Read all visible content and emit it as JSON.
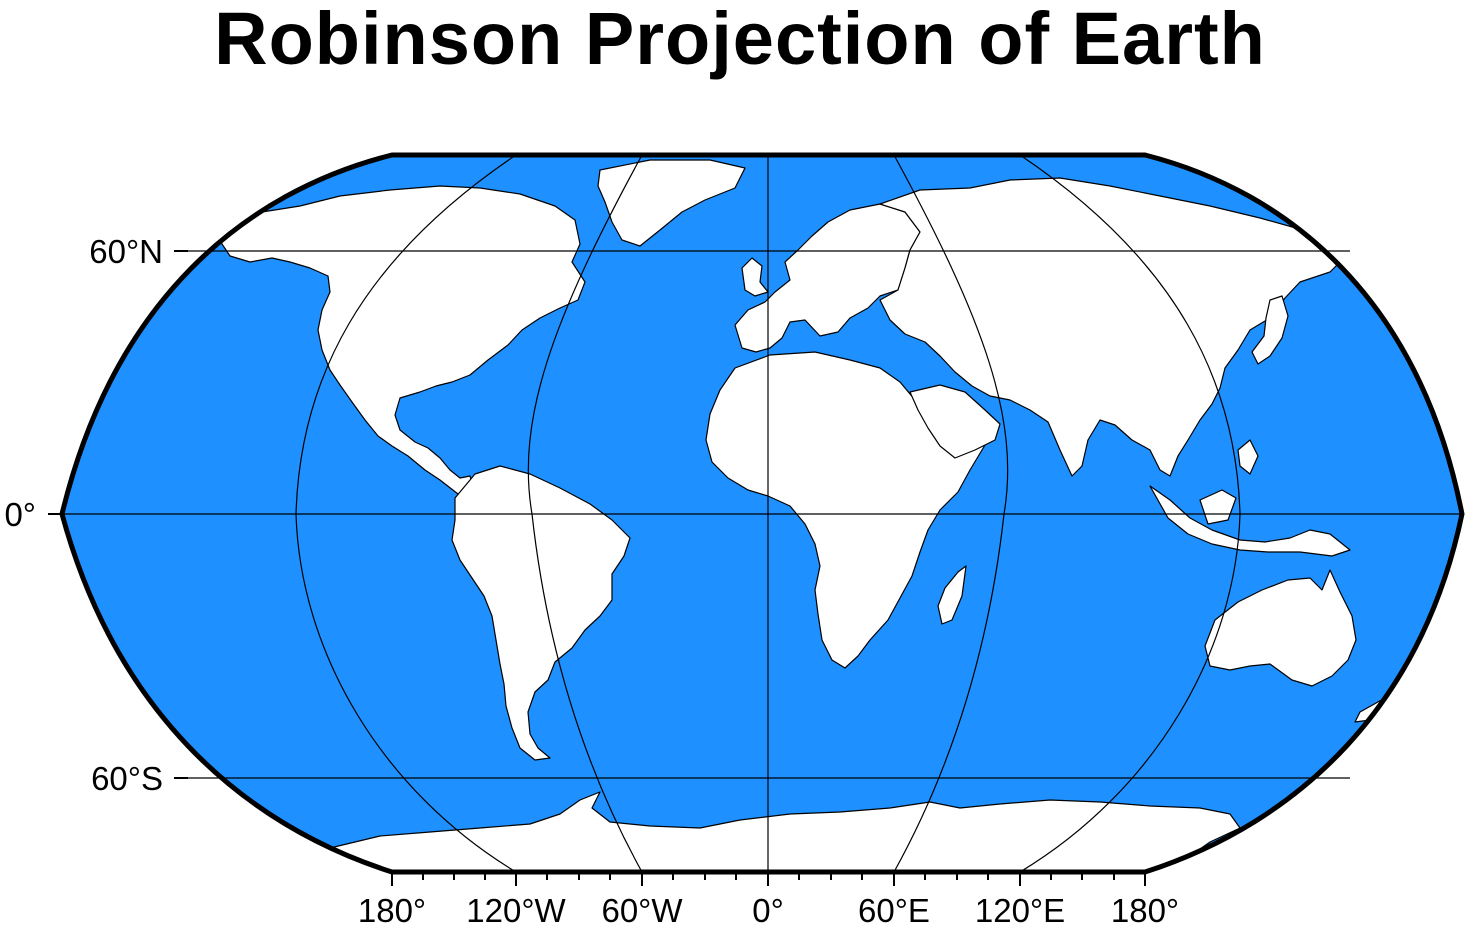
{
  "title": "Robinson Projection of Earth",
  "colors": {
    "ocean": "#1e90ff",
    "land": "#ffffff",
    "frame": "#000000",
    "gridline": "#000000"
  },
  "longitude_labels": [
    "180°",
    "120°W",
    "60°W",
    "0°",
    "60°E",
    "120°E",
    "180°"
  ],
  "latitude_labels": [
    "60°N",
    "0°",
    "60°S"
  ],
  "regions": [
    "north-america",
    "greenland",
    "south-america",
    "europe",
    "africa",
    "asia",
    "arabia",
    "india",
    "indonesia",
    "australia",
    "new-zealand",
    "madagascar",
    "japan",
    "uk",
    "antarctica"
  ]
}
